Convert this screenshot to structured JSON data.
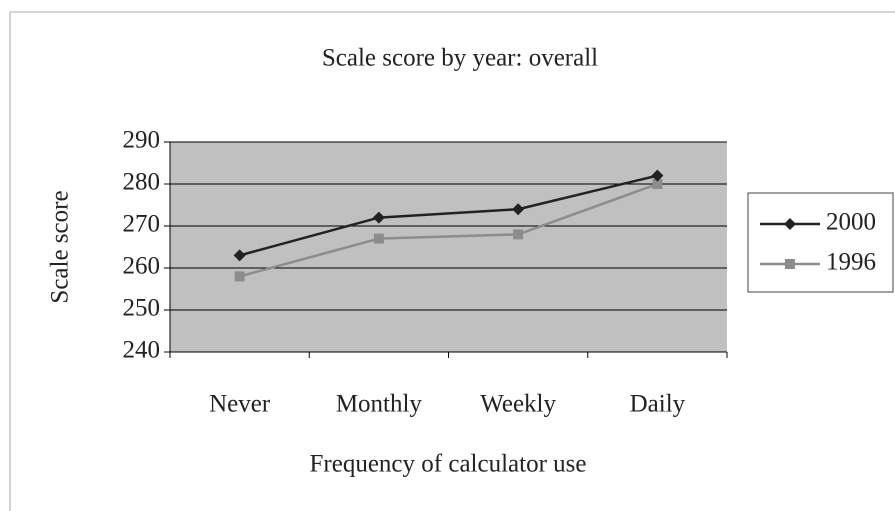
{
  "chart_data": {
    "type": "line",
    "title": "Scale score by year: overall",
    "x_label": "Frequency of calculator use",
    "y_label": "Scale score",
    "categories": [
      "Never",
      "Monthly",
      "Weekly",
      "Daily"
    ],
    "series": [
      {
        "name": "2000",
        "color": "#222222",
        "marker": "diamond",
        "values": [
          263,
          272,
          274,
          282
        ]
      },
      {
        "name": "1996",
        "color": "#8c8c8c",
        "marker": "square",
        "values": [
          258,
          267,
          268,
          280
        ]
      }
    ],
    "ylim": [
      240,
      290
    ],
    "yticks": [
      240,
      250,
      260,
      270,
      280,
      290
    ],
    "grid": true,
    "legend": "right"
  }
}
